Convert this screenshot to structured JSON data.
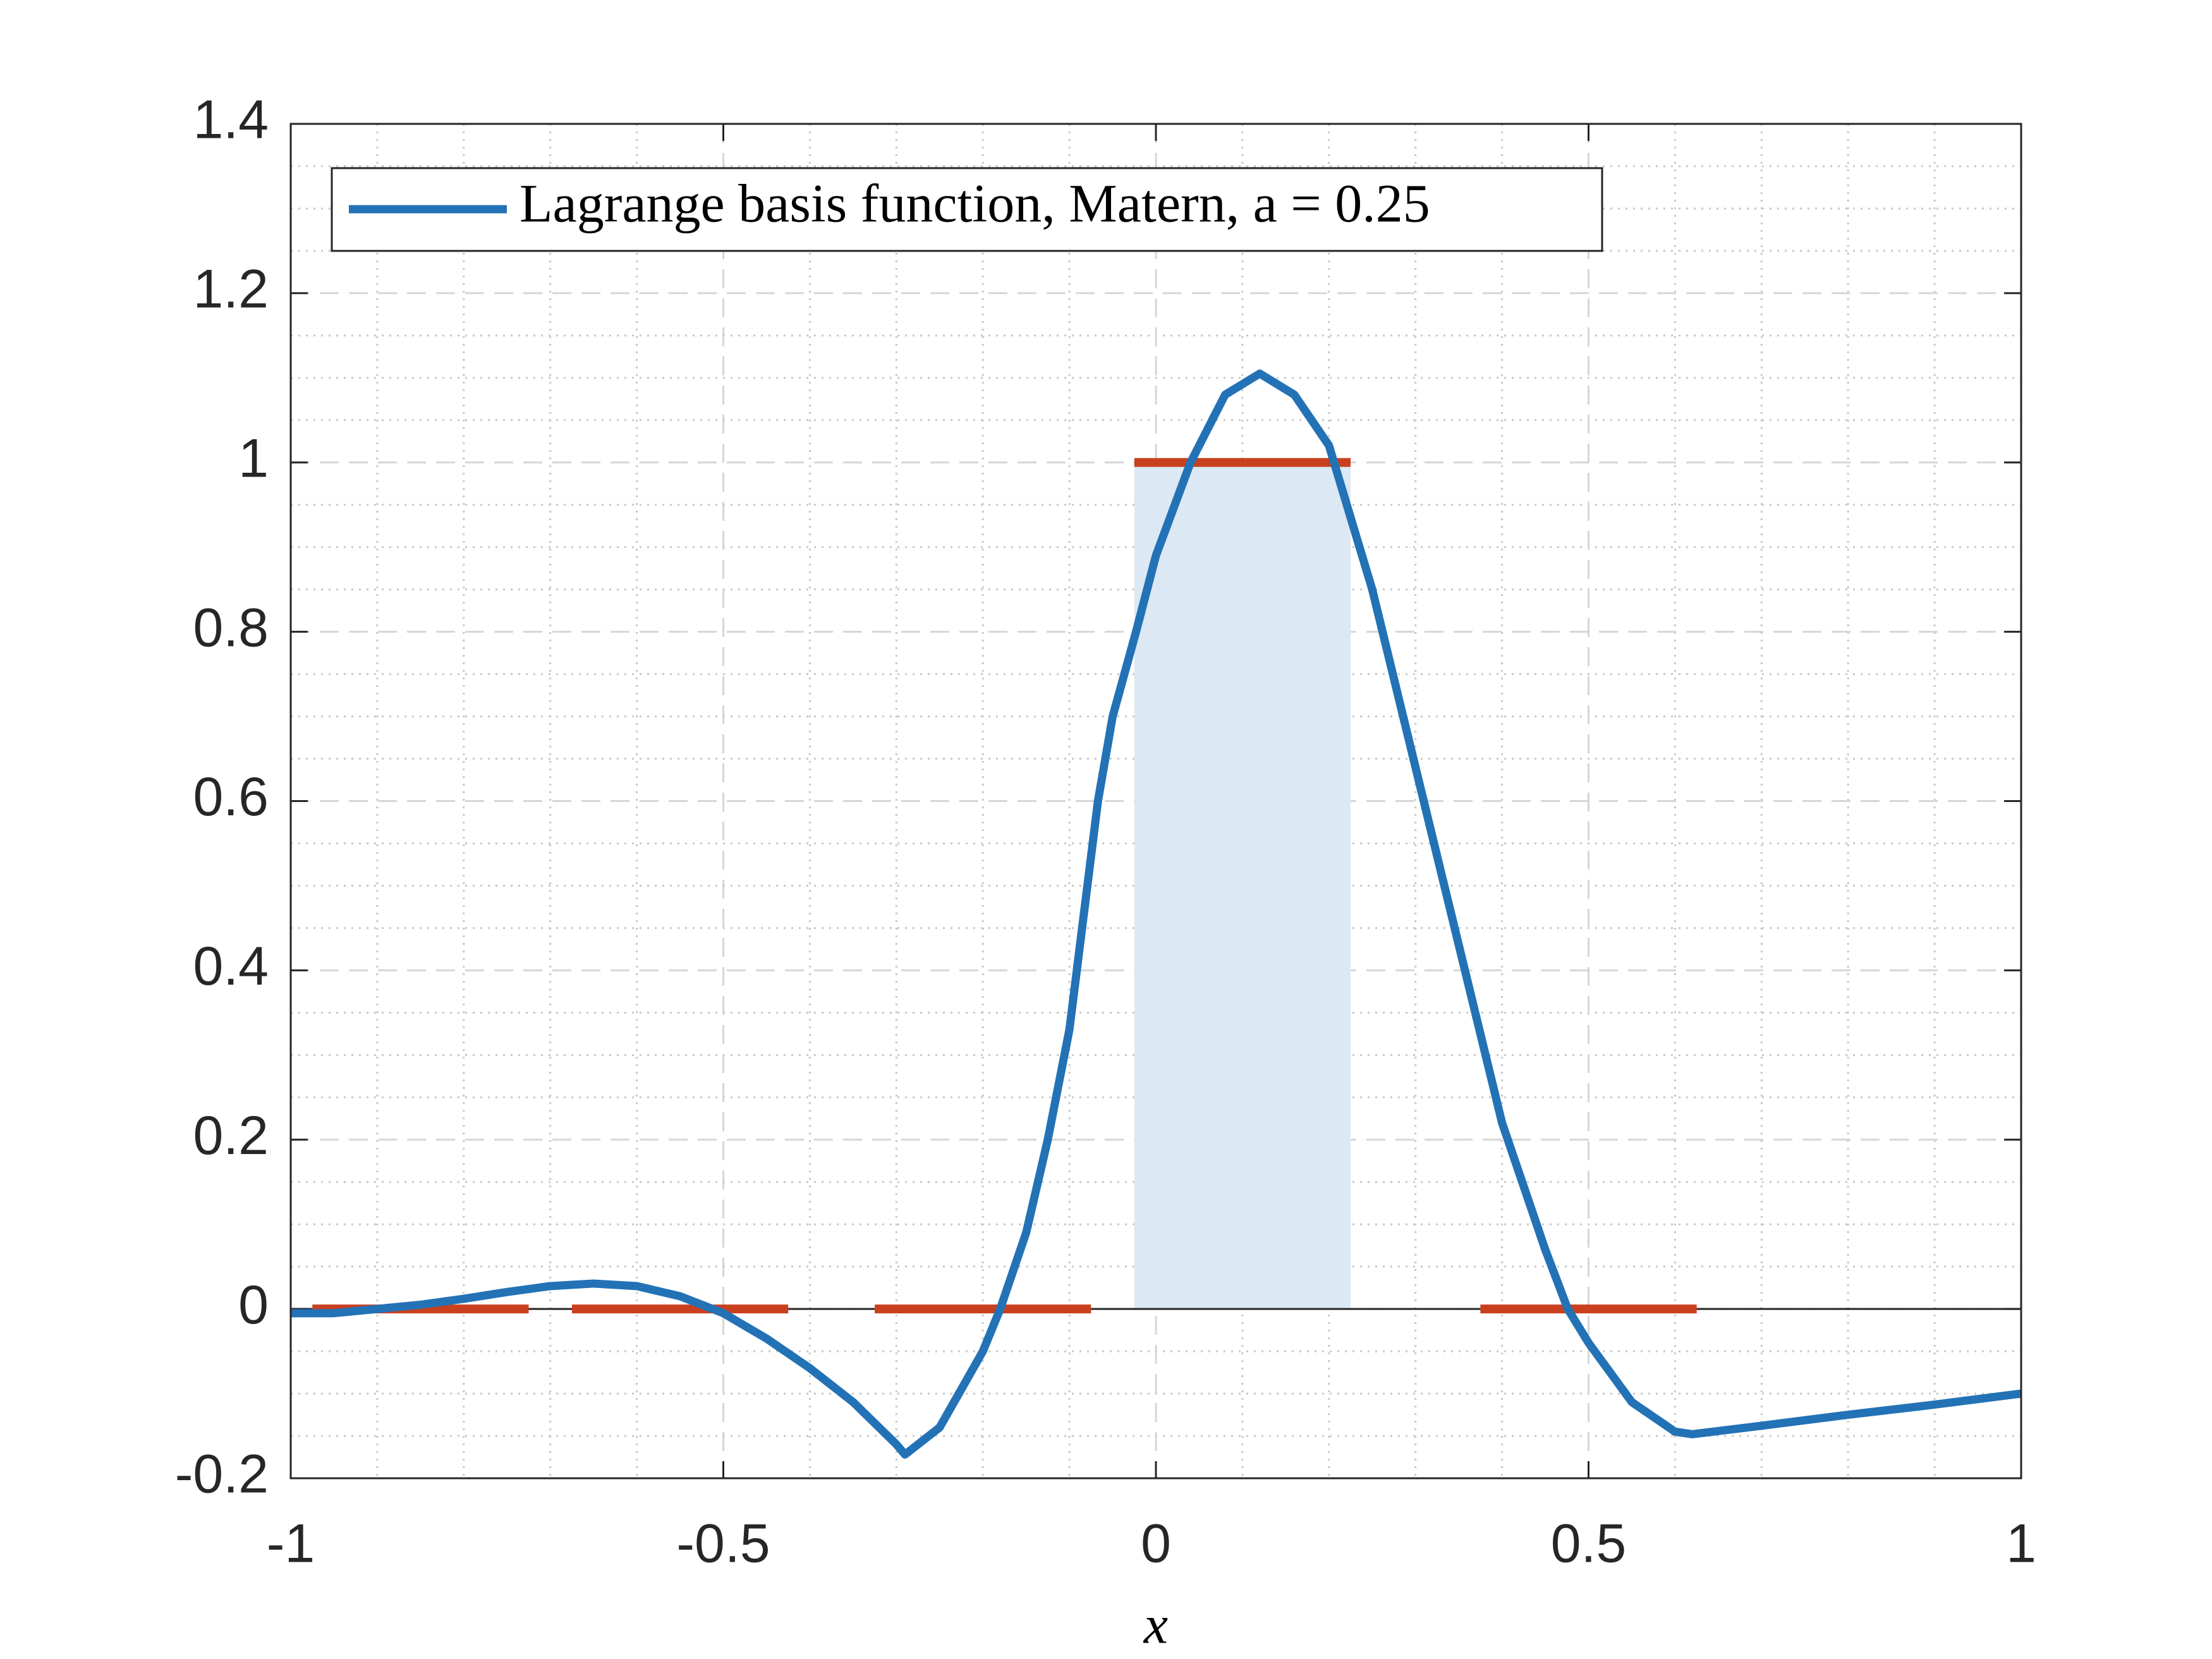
{
  "chart_data": {
    "type": "line",
    "xlabel": "x",
    "series": [
      {
        "name": "Lagrange basis function, Matern, a = 0.25",
        "color": "#2372b6",
        "x": [
          -1,
          -0.95,
          -0.9,
          -0.85,
          -0.8,
          -0.75,
          -0.7,
          -0.65,
          -0.6,
          -0.55,
          -0.5,
          -0.45,
          -0.4,
          -0.35,
          -0.3,
          -0.29,
          -0.25,
          -0.2,
          -0.18,
          -0.15,
          -0.125,
          -0.1,
          -0.067,
          -0.05,
          -0.023,
          0,
          0.04,
          0.08,
          0.12,
          0.16,
          0.2,
          0.25,
          0.3,
          0.35,
          0.4,
          0.45,
          0.476,
          0.5,
          0.55,
          0.6,
          0.62,
          0.7,
          0.8,
          0.9,
          1
        ],
        "values": [
          -0.005,
          -0.005,
          0,
          0.005,
          0.012,
          0.02,
          0.027,
          0.03,
          0.027,
          0.015,
          -0.005,
          -0.035,
          -0.07,
          -0.11,
          -0.16,
          -0.172,
          -0.14,
          -0.05,
          0,
          0.09,
          0.2,
          0.33,
          0.6,
          0.7,
          0.8,
          0.89,
          1.0,
          1.08,
          1.105,
          1.08,
          1.02,
          0.85,
          0.64,
          0.43,
          0.22,
          0.07,
          0,
          -0.04,
          -0.11,
          -0.145,
          -0.148,
          -0.138,
          -0.125,
          -0.113,
          -0.1
        ]
      }
    ],
    "segments": {
      "color": "#c9401f",
      "items": [
        {
          "x": [
            -0.975,
            -0.725
          ],
          "y": 0
        },
        {
          "x": [
            -0.675,
            -0.425
          ],
          "y": 0
        },
        {
          "x": [
            -0.325,
            -0.075
          ],
          "y": 0
        },
        {
          "x": [
            -0.025,
            0.225
          ],
          "y": 1
        },
        {
          "x": [
            0.375,
            0.625
          ],
          "y": 0
        }
      ]
    },
    "shaded": {
      "x": [
        -0.025,
        0.225
      ],
      "y": [
        0,
        1
      ],
      "color": "#dce8f3"
    },
    "xlim": [
      -1,
      1
    ],
    "xticks": [
      -1,
      -0.5,
      0,
      0.5,
      1
    ],
    "ylim": [
      -0.2,
      1.4
    ],
    "yticks": [
      -0.2,
      0,
      0.2,
      0.4,
      0.6,
      0.8,
      1,
      1.2,
      1.4
    ],
    "grid": true,
    "legend": "upper left"
  }
}
